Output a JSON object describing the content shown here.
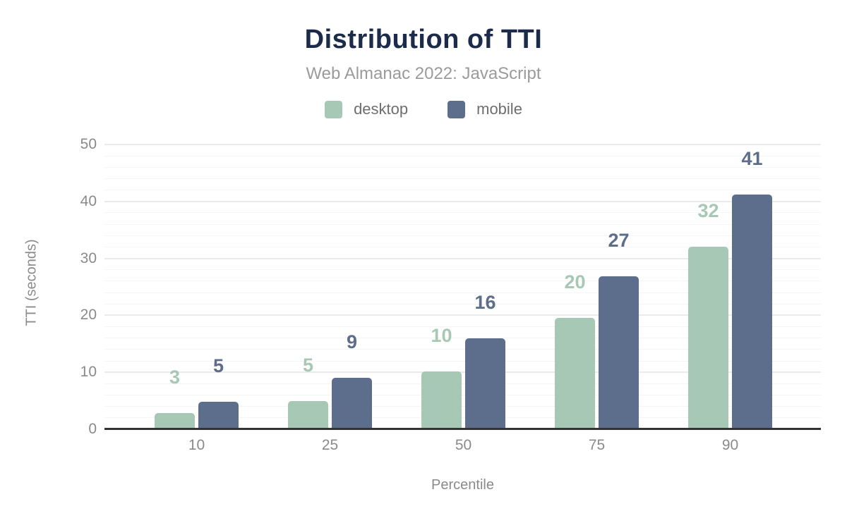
{
  "header": {
    "title": "Distribution of TTI",
    "subtitle": "Web Almanac 2022: JavaScript"
  },
  "colors": {
    "desktop": "#a6c8b5",
    "mobile": "#5d6e8c",
    "title": "#1c2b4a",
    "subtitle_text": "#9b9b9b",
    "axis_text": "#8a8a8a",
    "baseline": "#333333",
    "major_gridline": "#ebebeb",
    "minor_gridline": "#f5f5f5"
  },
  "chart_data": {
    "type": "bar",
    "title": "Distribution of TTI",
    "subtitle": "Web Almanac 2022: JavaScript",
    "categories": [
      "10",
      "25",
      "50",
      "75",
      "90"
    ],
    "xlabel": "Percentile",
    "ylabel": "TTI (seconds)",
    "ylim": [
      0,
      50
    ],
    "yticks": [
      0,
      10,
      20,
      30,
      40,
      50
    ],
    "grid": {
      "major_step": 10,
      "minor_step": 2,
      "visible": true
    },
    "legend_position": "top-center",
    "series": [
      {
        "name": "desktop",
        "color": "#a6c8b5",
        "values": [
          2.8,
          4.9,
          10.2,
          19.5,
          32.0
        ],
        "labels": [
          "3",
          "5",
          "10",
          "20",
          "32"
        ]
      },
      {
        "name": "mobile",
        "color": "#5d6e8c",
        "values": [
          4.8,
          9.0,
          16.0,
          26.8,
          41.2
        ],
        "labels": [
          "5",
          "9",
          "16",
          "27",
          "41"
        ]
      }
    ]
  }
}
